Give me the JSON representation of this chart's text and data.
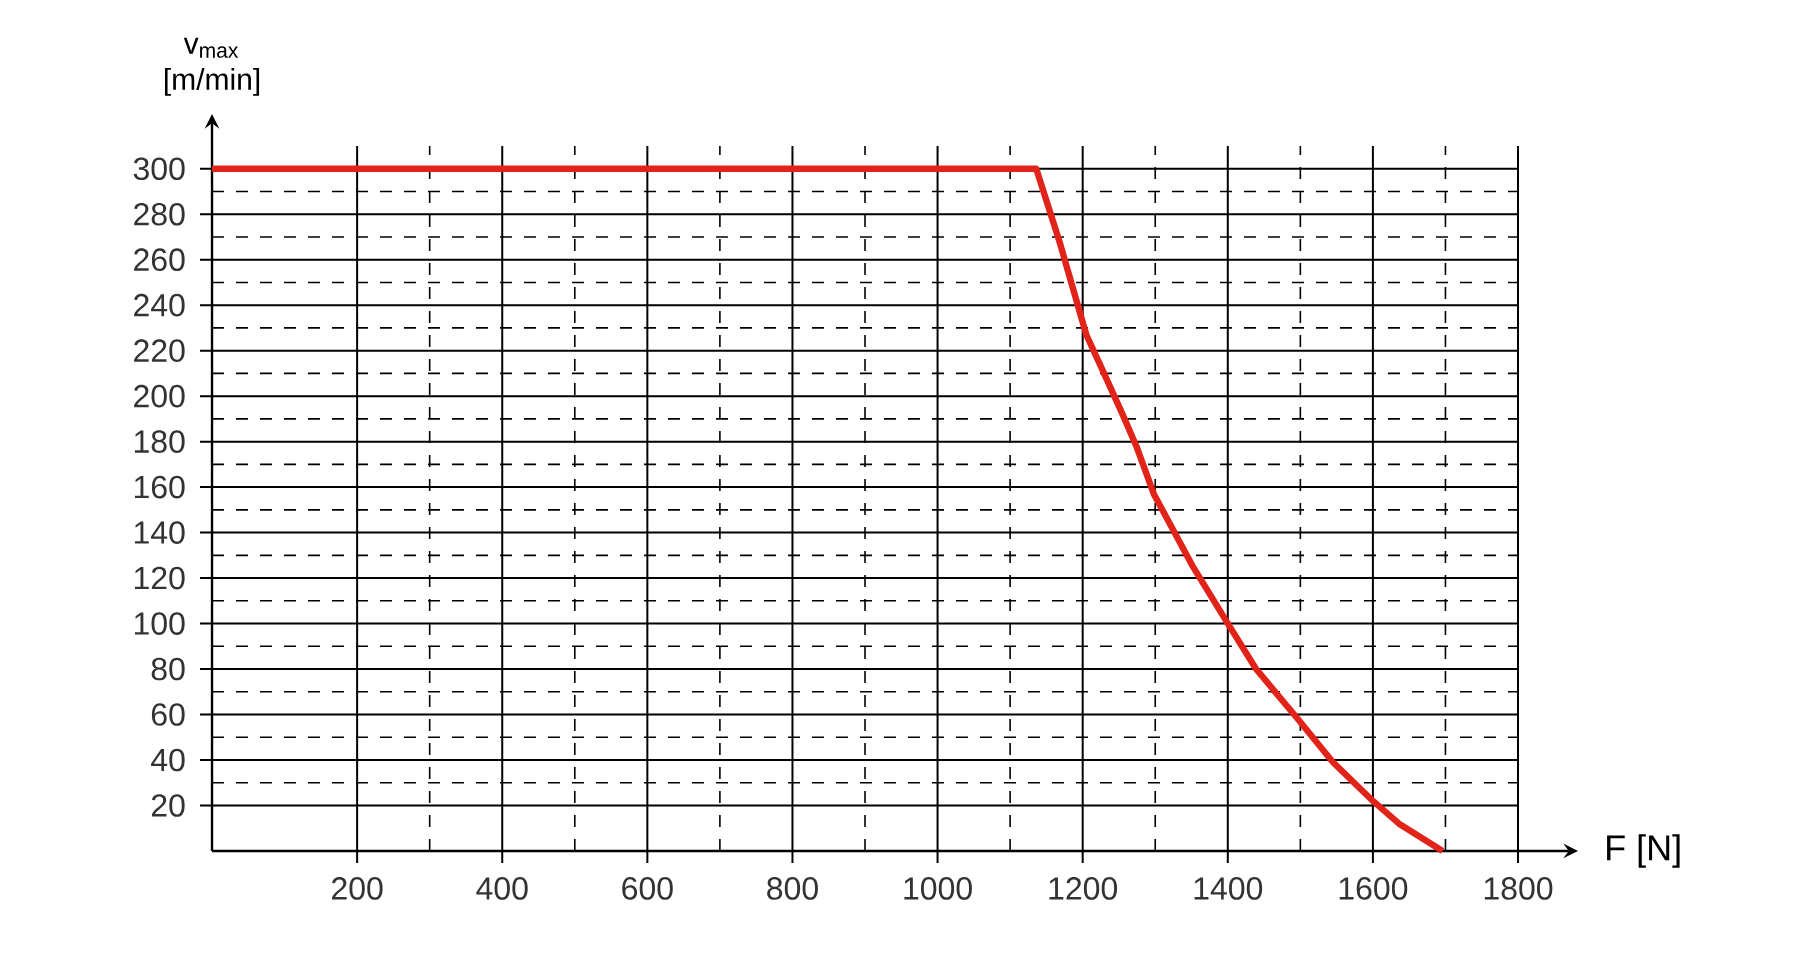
{
  "chart_data": {
    "type": "line",
    "xlabel": "F [N]",
    "ylabel": "v$_{max}$ [m/min]",
    "xlim": [
      0,
      1800
    ],
    "ylim": [
      0,
      310
    ],
    "xticks": [
      200,
      400,
      600,
      800,
      1000,
      1200,
      1400,
      1600,
      1800
    ],
    "yticks": [
      20,
      40,
      60,
      80,
      100,
      120,
      140,
      160,
      180,
      200,
      220,
      240,
      260,
      280,
      300
    ],
    "grid": true,
    "marker": "none",
    "line_style": "solid",
    "series": [
      {
        "color": "#e2231a",
        "x": [
          0,
          1136,
          1168,
          1205,
          1228,
          1255,
          1274,
          1298,
          1352,
          1402,
          1439,
          1494,
          1545,
          1600,
          1636,
          1696
        ],
        "values": [
          300,
          300,
          268,
          227,
          211,
          192,
          178,
          157,
          125,
          99,
          80,
          59,
          39,
          22,
          12,
          0
        ]
      }
    ]
  }
}
